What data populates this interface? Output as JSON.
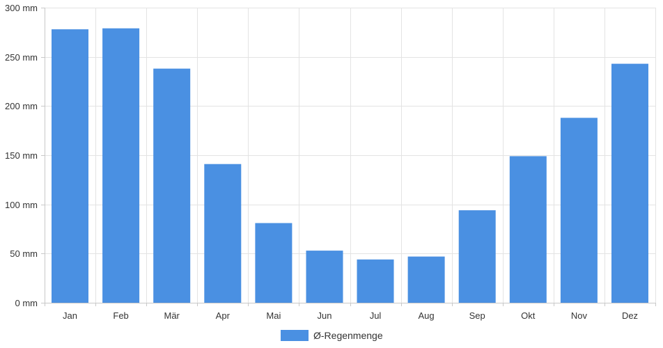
{
  "chart_data": {
    "type": "bar",
    "categories": [
      "Jan",
      "Feb",
      "Mär",
      "Apr",
      "Mai",
      "Jun",
      "Jul",
      "Aug",
      "Sep",
      "Okt",
      "Nov",
      "Dez"
    ],
    "series": [
      {
        "name": "Ø-Regenmenge",
        "values": [
          278,
          279,
          238,
          141,
          81,
          53,
          44,
          47,
          94,
          149,
          188,
          243
        ],
        "color": "#4a90e2"
      }
    ],
    "y_unit": "mm",
    "ylim": [
      0,
      300
    ],
    "yticks": [
      0,
      50,
      100,
      150,
      200,
      250,
      300
    ],
    "ytick_labels": [
      "0 mm",
      "50 mm",
      "100 mm",
      "150 mm",
      "200 mm",
      "250 mm",
      "300 mm"
    ],
    "grid": true,
    "legend_position": "bottom-center"
  }
}
